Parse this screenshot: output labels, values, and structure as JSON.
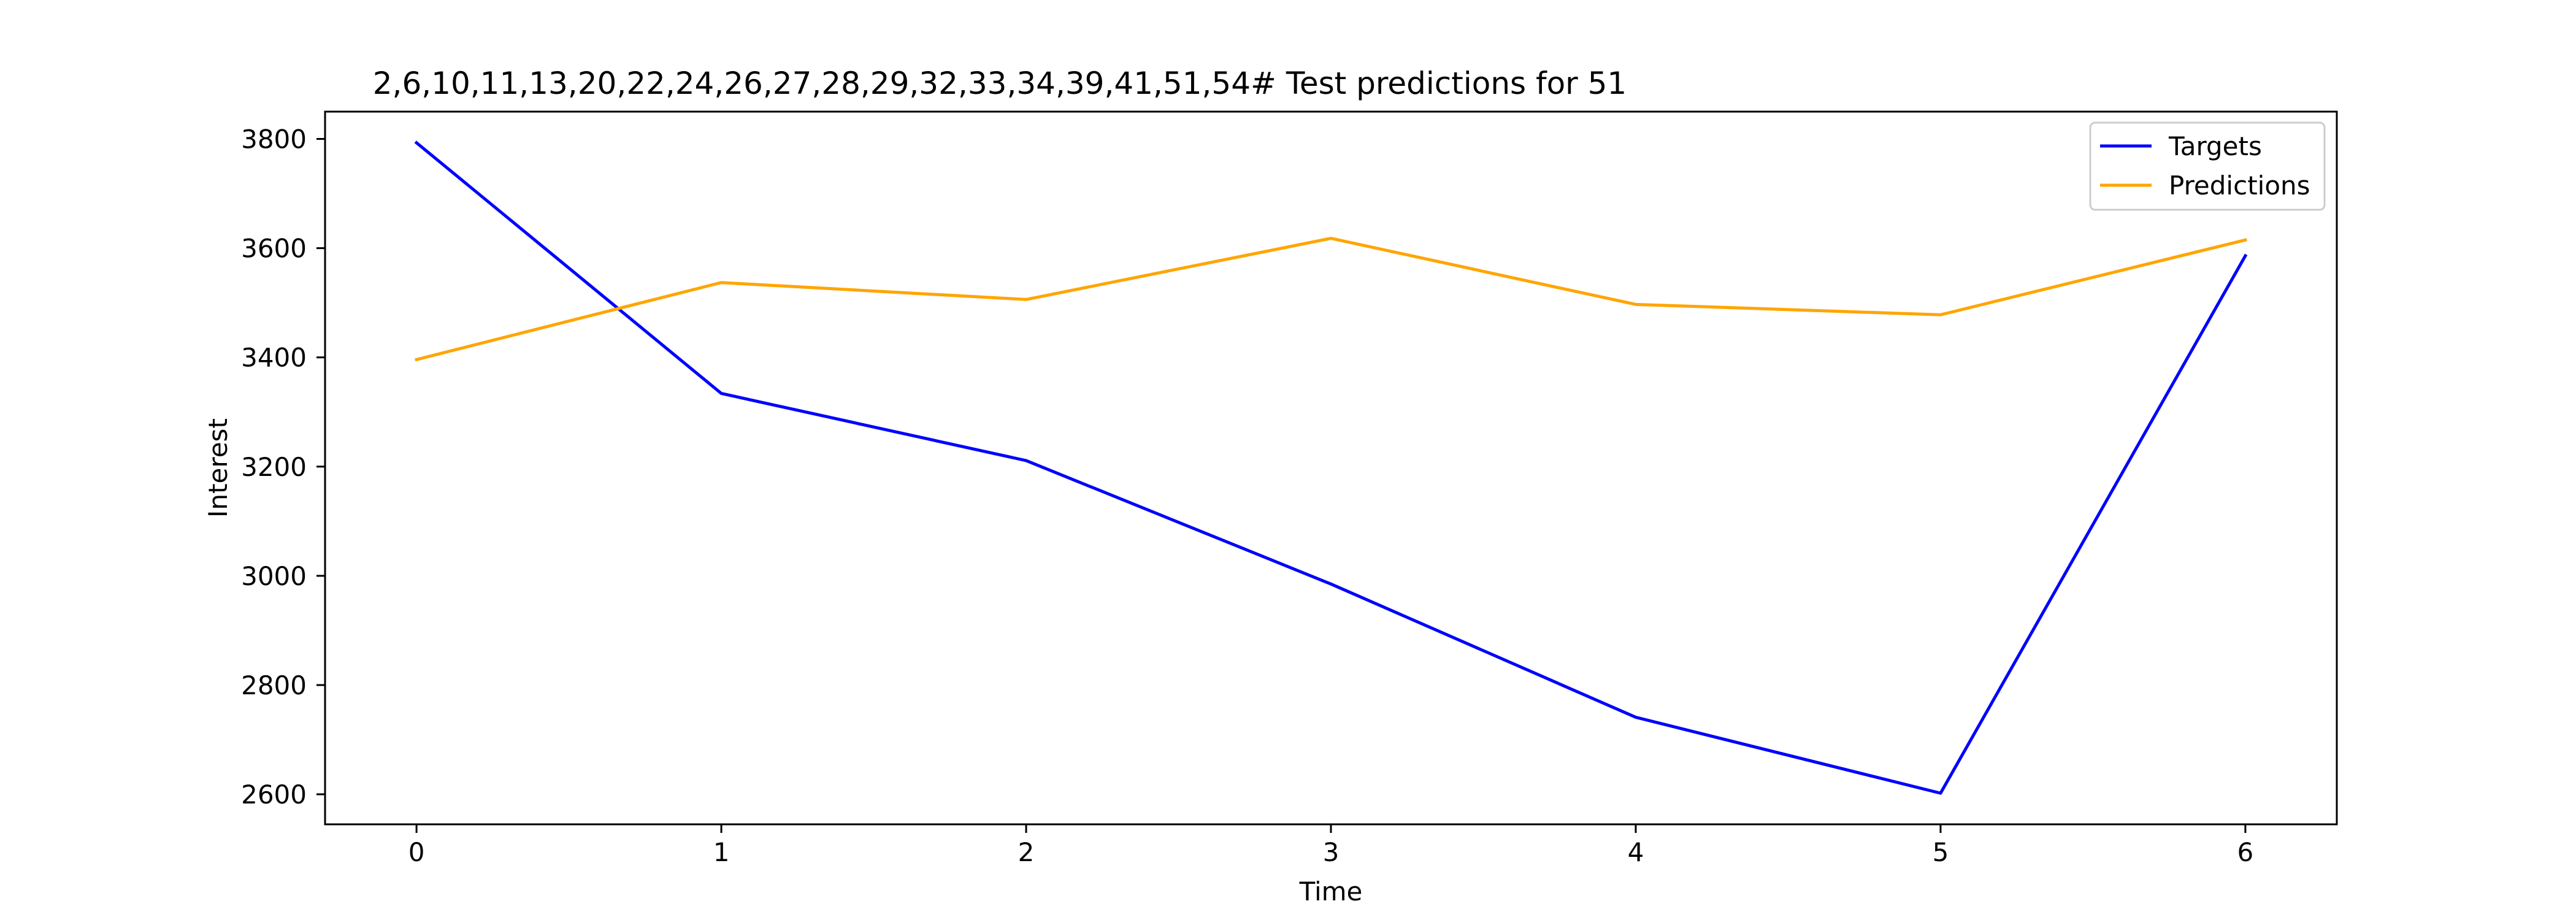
{
  "chart_data": {
    "type": "line",
    "title": "2,6,10,11,13,20,22,24,26,27,28,29,32,33,34,39,41,51,54# Test predictions for 51",
    "xlabel": "Time",
    "ylabel": "Interest",
    "x": [
      0,
      1,
      2,
      3,
      4,
      5,
      6
    ],
    "xlim": [
      -0.3,
      6.3
    ],
    "ylim": [
      2545,
      3850
    ],
    "xticks": [
      0,
      1,
      2,
      3,
      4,
      5,
      6
    ],
    "yticks": [
      2600,
      2800,
      3000,
      3200,
      3400,
      3600,
      3800
    ],
    "grid": false,
    "legend_position": "top-right",
    "series": [
      {
        "name": "Targets",
        "color": "#0000ff",
        "values": [
          3793,
          3334,
          3211,
          2985,
          2741,
          2602,
          3586
        ]
      },
      {
        "name": "Predictions",
        "color": "#ffa500",
        "values": [
          3396,
          3537,
          3506,
          3618,
          3497,
          3478,
          3615
        ]
      }
    ]
  }
}
